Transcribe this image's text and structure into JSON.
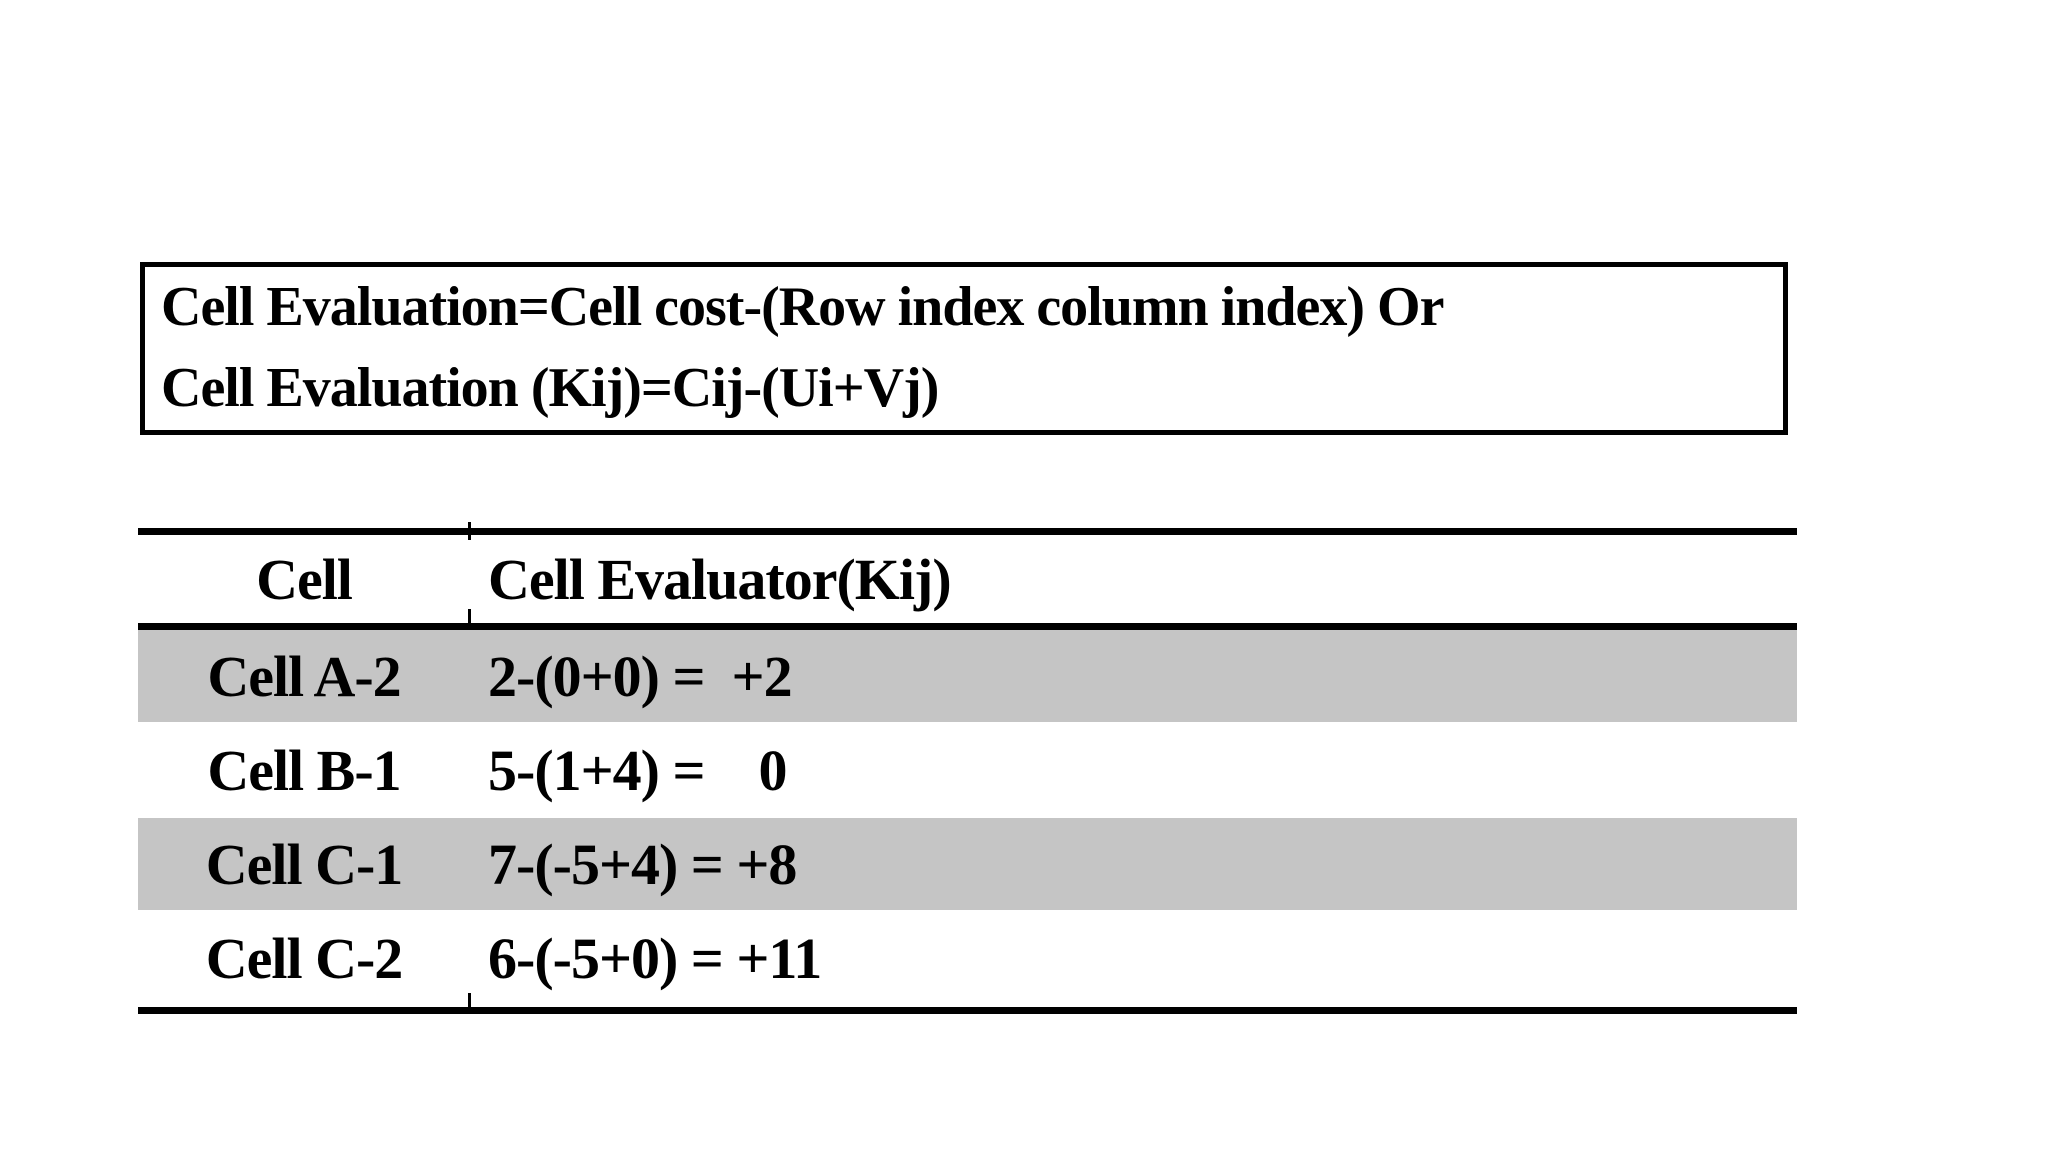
{
  "formula_box": {
    "line1": "Cell Evaluation=Cell cost-(Row index column index) Or",
    "line2": "Cell Evaluation (Kij)=Cij-(Ui+Vj)"
  },
  "table": {
    "headers": [
      "Cell",
      "Cell Evaluator(Kij)"
    ],
    "rows": [
      {
        "cell": "Cell A-2",
        "evaluation": "2-(0+0) =  +2",
        "highlighted": true
      },
      {
        "cell": "Cell B-1",
        "evaluation": "5-(1+4) =    0",
        "highlighted": false
      },
      {
        "cell": "Cell C-1",
        "evaluation": "7-(-5+4) = +8",
        "highlighted": true
      },
      {
        "cell": "Cell C-2",
        "evaluation": "6-(-5+0) = +11",
        "highlighted": false
      }
    ]
  },
  "colors": {
    "highlight_row": "#c5c5c5",
    "text": "#000000",
    "border": "#000000",
    "background": "#ffffff"
  }
}
